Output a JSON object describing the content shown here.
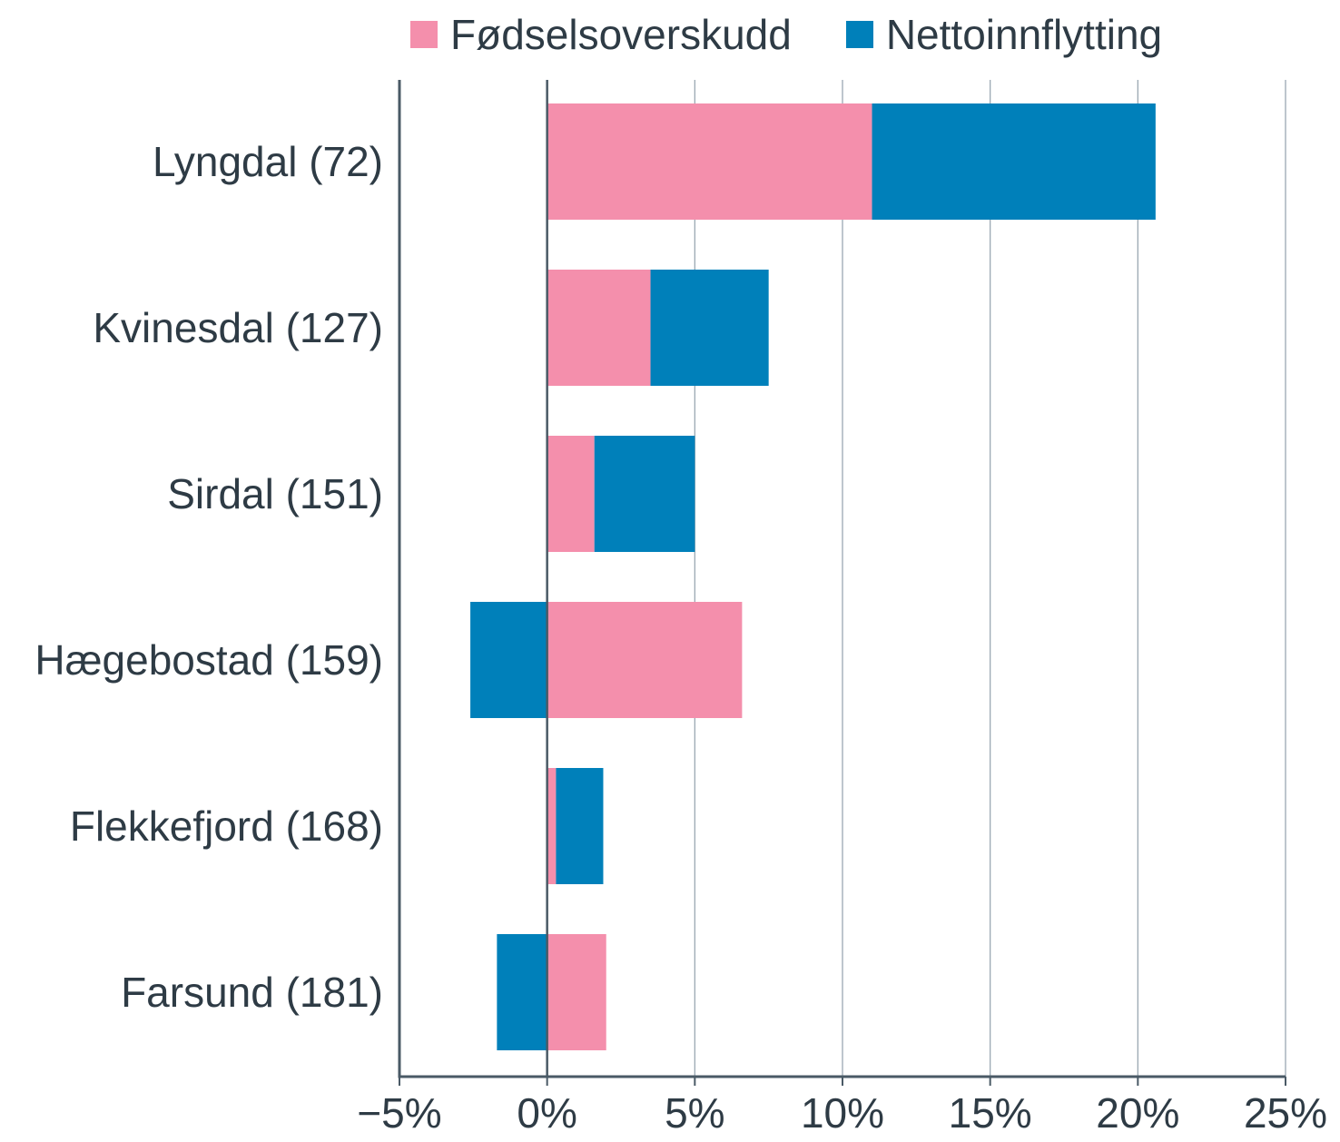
{
  "chart_data": {
    "type": "bar",
    "orientation": "horizontal",
    "stacked": true,
    "categories": [
      "Lyngdal (72)",
      "Kvinesdal (127)",
      "Sirdal (151)",
      "Hægebostad (159)",
      "Flekkefjord (168)",
      "Farsund (181)"
    ],
    "series": [
      {
        "name": "Fødselsoverskudd",
        "color": "#f48fac",
        "values": [
          11.0,
          3.5,
          1.6,
          6.6,
          0.3,
          2.0
        ]
      },
      {
        "name": "Nettoinnflytting",
        "color": "#0080ba",
        "values": [
          9.6,
          4.0,
          3.4,
          -2.6,
          1.6,
          -1.7
        ]
      }
    ],
    "xlim": [
      -5,
      25
    ],
    "xticks": [
      -5,
      0,
      5,
      10,
      15,
      20,
      25
    ],
    "xtick_labels": [
      "−5%",
      "0%",
      "5%",
      "10%",
      "15%",
      "20%",
      "25%"
    ],
    "grid": true,
    "legend_position": "top",
    "title": "",
    "xlabel": "",
    "ylabel": ""
  }
}
